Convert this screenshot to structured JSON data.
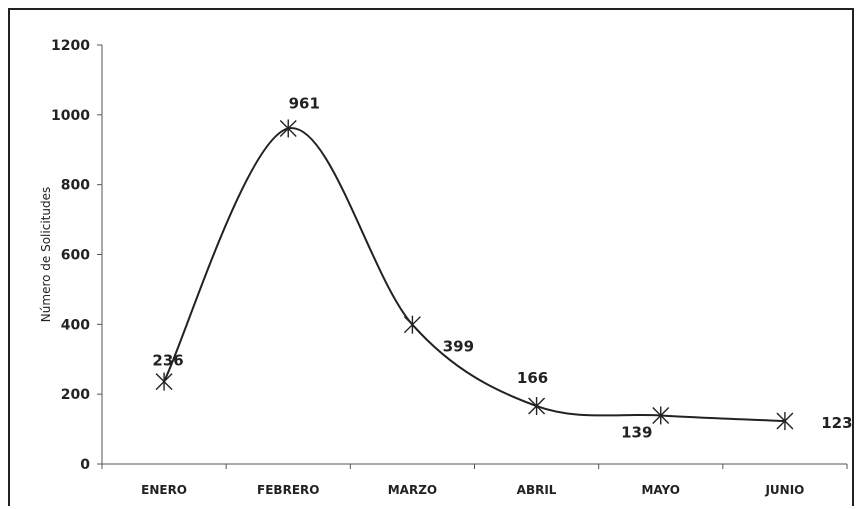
{
  "chart_data": {
    "type": "line",
    "title": "",
    "xlabel": "",
    "ylabel": "Número de Solicitudes",
    "categories": [
      "ENERO",
      "FEBRERO",
      "MARZO",
      "ABRIL",
      "MAYO",
      "JUNIO"
    ],
    "series": [
      {
        "values": [
          236,
          961,
          399,
          166,
          139,
          123
        ]
      }
    ],
    "data_labels": [
      "236",
      "961",
      "399",
      "166",
      "139",
      "123"
    ],
    "ylim": [
      0,
      1200
    ],
    "yticks": [
      0,
      200,
      400,
      600,
      800,
      1000,
      1200
    ],
    "grid": false,
    "smooth": true,
    "marker": "asterisk",
    "line_color": "#222222"
  }
}
